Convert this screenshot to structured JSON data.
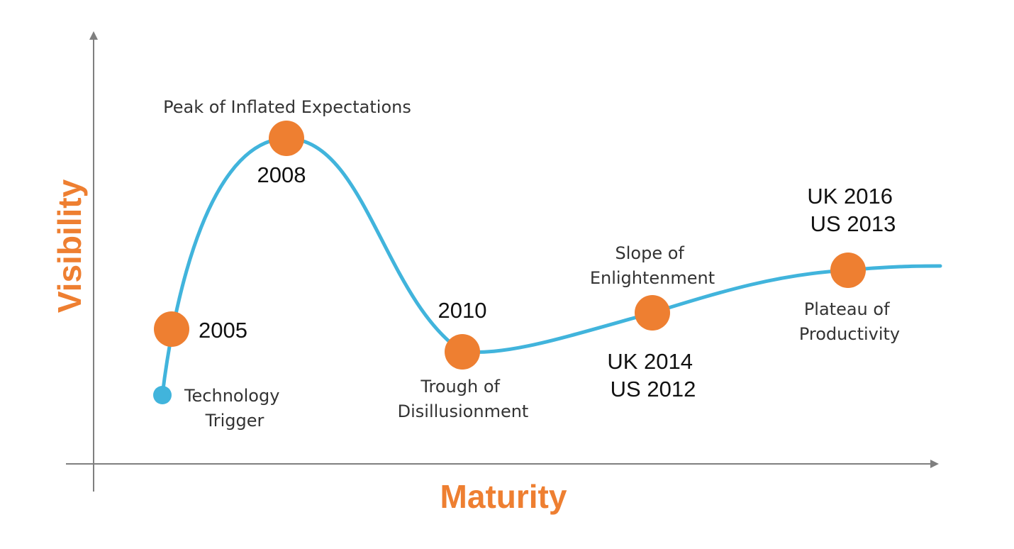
{
  "colors": {
    "curve": "#41B4DC",
    "milestone": "#EE7F31",
    "trigger_dot": "#41B4DC",
    "axis": "#7F7F7F",
    "axis_title": "#EE7F31",
    "phase_text": "#333333",
    "year_text": "#111111"
  },
  "axes": {
    "x_title": "Maturity",
    "y_title": "Visibility"
  },
  "phases": {
    "technology_trigger": [
      "Technology",
      "Trigger"
    ],
    "peak": [
      "Peak of Inflated Expectations"
    ],
    "trough": [
      "Trough of",
      "Disillusionment"
    ],
    "slope": [
      "Slope of",
      "Enlightenment"
    ],
    "plateau": [
      "Plateau of",
      "Productivity"
    ]
  },
  "milestones": {
    "m2005": [
      "2005"
    ],
    "m2008": [
      "2008"
    ],
    "m2010": [
      "2010"
    ],
    "m_slope": [
      "UK 2014",
      "US 2012"
    ],
    "m_plateau": [
      "UK 2016",
      "US 2013"
    ]
  }
}
